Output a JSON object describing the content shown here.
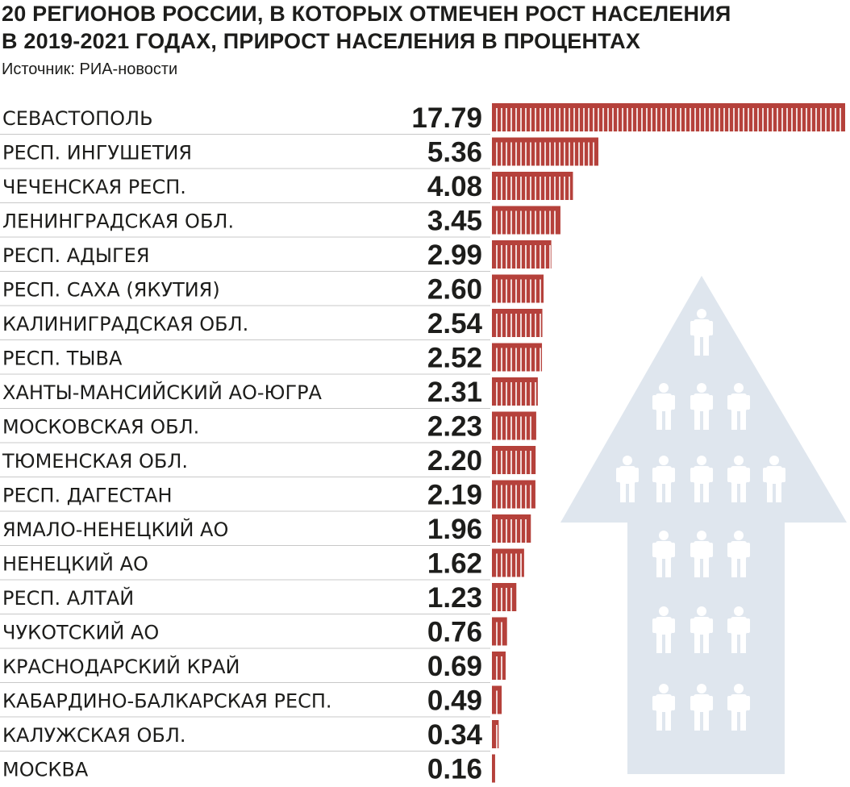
{
  "title_line1": "20 РЕГИОНОВ РОССИИ, В КОТОРЫХ ОТМЕЧЕН РОСТ НАСЕЛЕНИЯ",
  "title_line2": "В 2019-2021 ГОДАХ, ПРИРОСТ НАСЕЛЕНИЯ В ПРОЦЕНТАХ",
  "source": "Источник: РИА-новости",
  "colors": {
    "bar": "#b5413b",
    "text": "#1d1d1b",
    "divider": "#c8c8c8",
    "arrow": "#dfe6ee",
    "people": "#ffffff"
  },
  "chart_data": {
    "type": "bar",
    "orientation": "horizontal",
    "title": "20 РЕГИОНОВ РОССИИ, В КОТОРЫХ ОТМЕЧЕН РОСТ НАСЕЛЕНИЯ В 2019-2021 ГОДАХ, ПРИРОСТ НАСЕЛЕНИЯ В ПРОЦЕНТАХ",
    "source": "Источник: РИА-новости",
    "categories": [
      "СЕВАСТОПОЛЬ",
      "РЕСП. ИНГУШЕТИЯ",
      "ЧЕЧЕНСКАЯ РЕСП.",
      "ЛЕНИНГРАДСКАЯ ОБЛ.",
      "РЕСП. АДЫГЕЯ",
      "РЕСП. САХА (ЯКУТИЯ)",
      "КАЛИНИГРАДСКАЯ ОБЛ.",
      "РЕСП. ТЫВА",
      "ХАНТЫ-МАНСИЙСКИЙ АО-ЮГРА",
      "МОСКОВСКАЯ ОБЛ.",
      "ТЮМЕНСКАЯ ОБЛ.",
      "РЕСП. ДАГЕСТАН",
      "ЯМАЛО-НЕНЕЦКИЙ АО",
      "НЕНЕЦКИЙ АО",
      "РЕСП. АЛТАЙ",
      "ЧУКОТСКИЙ АО",
      "КРАСНОДАРСКИЙ КРАЙ",
      "КАБАРДИНО-БАЛКАРСКАЯ РЕСП.",
      "КАЛУЖСКАЯ ОБЛ.",
      "МОСКВА"
    ],
    "values": [
      17.79,
      5.36,
      4.08,
      3.45,
      2.99,
      2.6,
      2.54,
      2.52,
      2.31,
      2.23,
      2.2,
      2.19,
      1.96,
      1.62,
      1.23,
      0.76,
      0.69,
      0.49,
      0.34,
      0.16
    ],
    "value_labels": [
      "17.79",
      "5.36",
      "4.08",
      "3.45",
      "2.99",
      "2.60",
      "2.54",
      "2.52",
      "2.31",
      "2.23",
      "2.20",
      "2.19",
      "1.96",
      "1.62",
      "1.23",
      "0.76",
      "0.69",
      "0.49",
      "0.34",
      "0.16"
    ],
    "xlim": [
      0,
      17.79
    ],
    "grid": false,
    "legend": "none"
  }
}
